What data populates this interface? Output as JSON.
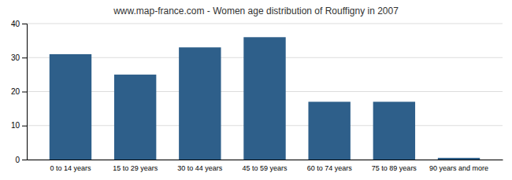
{
  "chart_data": {
    "type": "bar",
    "title": "www.map-france.com - Women age distribution of Rouffigny in 2007",
    "categories": [
      "0 to 14 years",
      "15 to 29 years",
      "30 to 44 years",
      "45 to 59 years",
      "60 to 74 years",
      "75 to 89 years",
      "90 years and more"
    ],
    "values": [
      31,
      25,
      33,
      36,
      17,
      17,
      0.5
    ],
    "color": "#2e5f8a",
    "ylim": [
      0,
      40
    ],
    "yticks": [
      0,
      10,
      20,
      30,
      40
    ],
    "grid": true
  }
}
